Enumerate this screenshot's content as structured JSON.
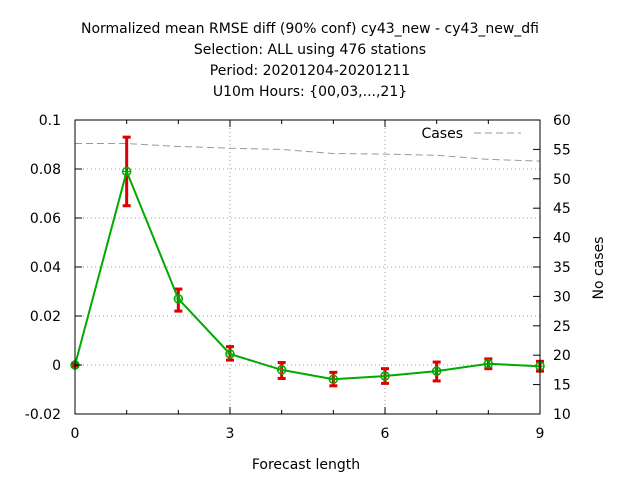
{
  "chart_data": {
    "type": "line",
    "title_lines": [
      "Normalized mean RMSE diff (90% conf) cy43_new - cy43_new_dfi",
      "Selection: ALL using   476 stations",
      "Period: 20201204-20201211",
      "U10m   Hours: {00,03,...,21}"
    ],
    "xlabel": "Forecast length",
    "y2label": "No cases",
    "xlim": [
      0,
      9
    ],
    "ylim": [
      -0.02,
      0.1
    ],
    "y2lim": [
      10,
      60
    ],
    "x_ticks": [
      0,
      3,
      6,
      9
    ],
    "y_ticks": [
      -0.02,
      0,
      0.02,
      0.04,
      0.06,
      0.08,
      0.1
    ],
    "y_tick_labels": [
      "-0.02",
      "0",
      "0.02",
      "0.04",
      "0.06",
      "0.08",
      "0.1"
    ],
    "y2_ticks": [
      10,
      15,
      20,
      25,
      30,
      35,
      40,
      45,
      50,
      55,
      60
    ],
    "grid": true,
    "legend_position": "top-right",
    "colors": {
      "line": "#00aa00",
      "errorbar": "#dd0000",
      "cases": "#999999"
    },
    "series": [
      {
        "x": [
          0,
          1,
          2,
          3,
          4,
          5,
          6,
          7,
          8,
          9
        ],
        "values": [
          0.0,
          0.079,
          0.027,
          0.0045,
          -0.002,
          -0.0058,
          -0.0045,
          -0.0025,
          0.0005,
          -0.0005
        ],
        "err_low": [
          -0.0005,
          0.065,
          0.022,
          0.002,
          -0.0055,
          -0.0085,
          -0.0075,
          -0.0065,
          -0.0015,
          -0.0025
        ],
        "err_high": [
          0.0005,
          0.093,
          0.031,
          0.0075,
          0.001,
          -0.003,
          -0.0015,
          0.0012,
          0.0025,
          0.0015
        ]
      },
      {
        "name": "Cases",
        "axis": "right",
        "x": [
          0,
          1,
          2,
          3,
          4,
          5,
          6,
          7,
          8,
          9
        ],
        "values": [
          56,
          56,
          55.5,
          55.2,
          55,
          54.3,
          54.2,
          54,
          53.3,
          53
        ]
      }
    ]
  }
}
